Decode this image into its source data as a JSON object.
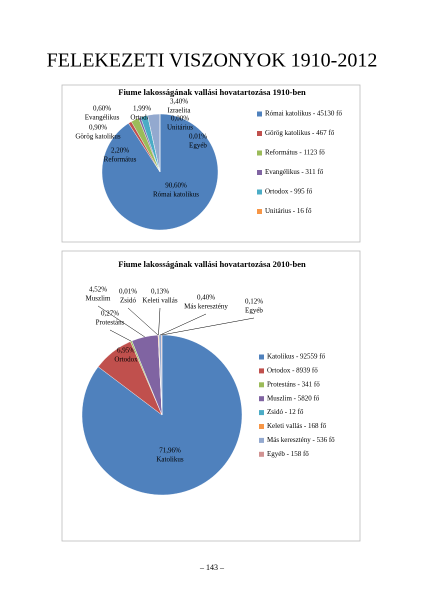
{
  "page_title": "FELEKEZETI VISZONYOK 1910-2012",
  "page_number": "– 143 –",
  "chart_data": [
    {
      "type": "pie",
      "title": "Fiume lakosságának vallási hovatartozása 1910-ben",
      "categories": [
        "Római katolikus - 45130 fő",
        "Görög katolikus - 467 fő",
        "Református - 1123 fő",
        "Evangélikus - 311 fő",
        "Ortodox - 995 fő",
        "Unitárius - 16 fő",
        null,
        null
      ],
      "slice_labels": [
        "Római katolikus",
        "Görög katolikus",
        "Református",
        "Evangélikus",
        "Ortodox",
        "Unitárius",
        "Izraelita",
        "Egyéb"
      ],
      "values": [
        90.6,
        0.9,
        2.2,
        0.6,
        1.99,
        0.0,
        3.4,
        0.01
      ],
      "value_labels": [
        "90,60%",
        "0,90%",
        "2,20%",
        "0,60%",
        "1,99%",
        "0,00%",
        "3,40%",
        "0,01%"
      ],
      "colors": [
        "#4f81bd",
        "#c0504d",
        "#9bbb59",
        "#8064a2",
        "#4bacc6",
        "#f79646",
        "#93a9cf",
        "#d19392"
      ]
    },
    {
      "type": "pie",
      "title": "Fiume lakosságának vallási hovatartozása 2010-ben",
      "categories": [
        "Katolikus - 92559 fő",
        "Ortodox - 8939 fő",
        "Protestáns - 341 fő",
        "Muszlim - 5820 fő",
        "Zsidó - 12 fő",
        "Keleti vallás - 168 fő",
        "Más keresztény - 536 fő",
        "Egyéb - 158 fő"
      ],
      "slice_labels": [
        "Katolikus",
        "Ortodox",
        "Protestáns",
        "Muszlim",
        "Zsidó",
        "Keleti vallás",
        "Más keresztény",
        "Egyéb"
      ],
      "values": [
        71.96,
        6.95,
        0.27,
        4.52,
        0.01,
        0.13,
        0.4,
        0.12
      ],
      "value_labels": [
        "71,96%",
        "6,95%",
        "0,27%",
        "4,52%",
        "0,01%",
        "0,13%",
        "0,40%",
        "0,12%"
      ],
      "colors": [
        "#4f81bd",
        "#c0504d",
        "#9bbb59",
        "#8064a2",
        "#4bacc6",
        "#f79646",
        "#93a9cf",
        "#d19392"
      ]
    }
  ]
}
